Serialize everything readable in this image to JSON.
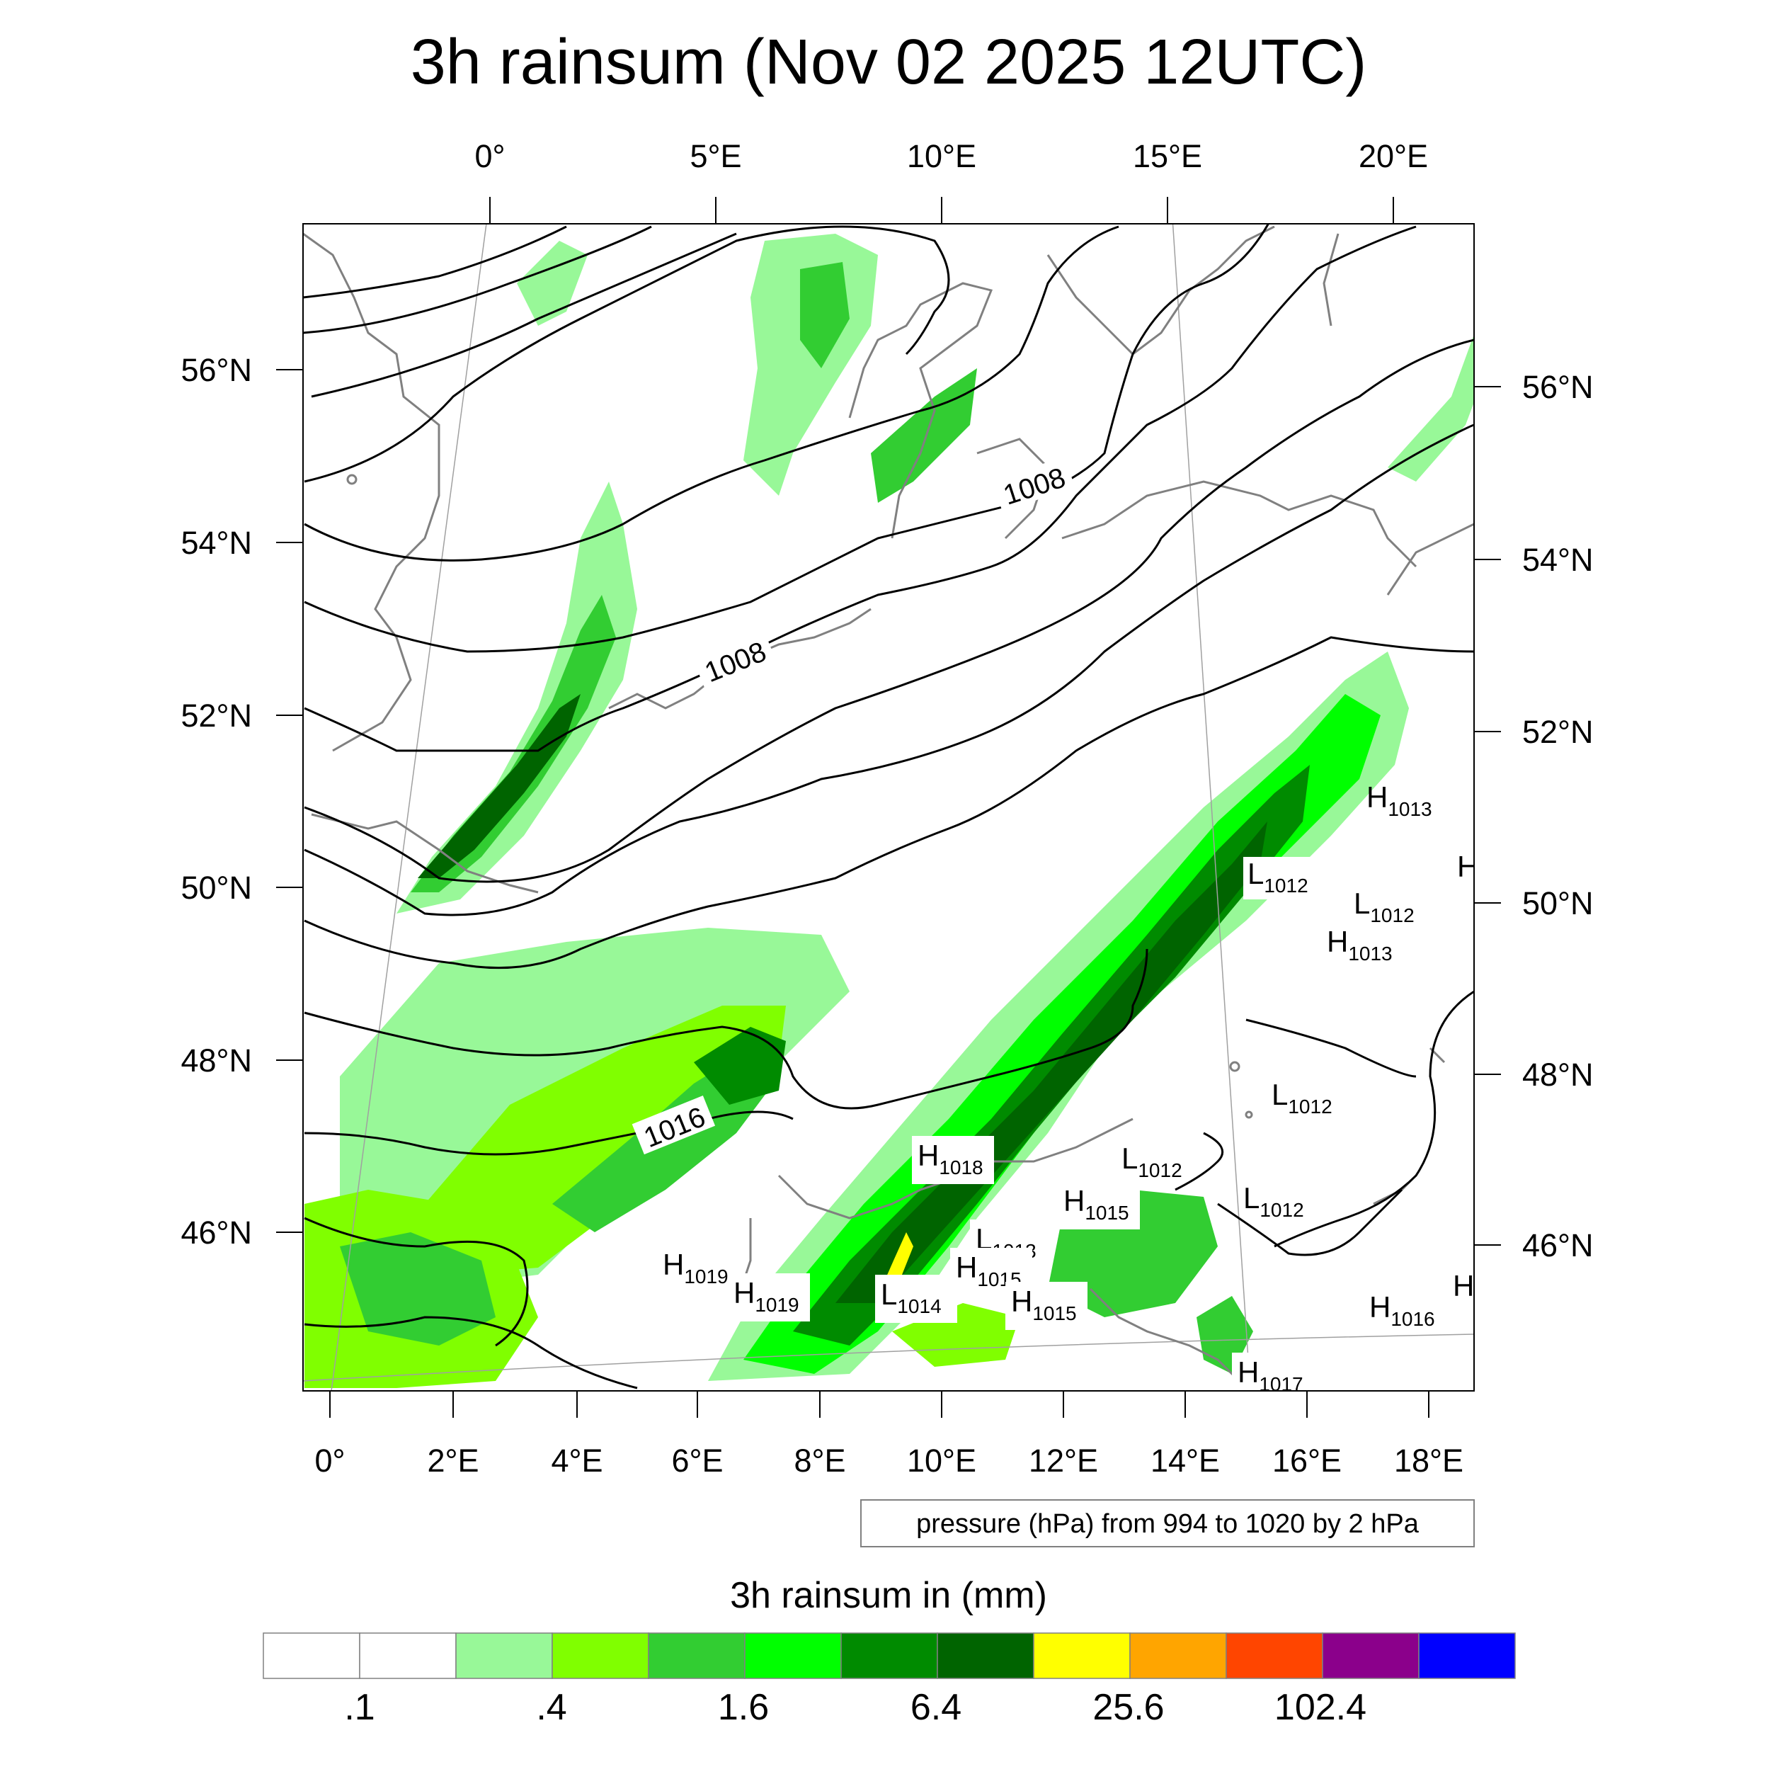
{
  "title": "3h rainsum (Nov 02 2025 12UTC)",
  "top_lon_labels": [
    "0°",
    "5°E",
    "10°E",
    "15°E",
    "20°E"
  ],
  "bottom_lon_labels": [
    "0°",
    "2°E",
    "4°E",
    "6°E",
    "8°E",
    "10°E",
    "12°E",
    "14°E",
    "16°E",
    "18°E"
  ],
  "left_lat_labels": [
    "56°N",
    "54°N",
    "52°N",
    "50°N",
    "48°N",
    "46°N"
  ],
  "right_lat_labels": [
    "56°N",
    "54°N",
    "52°N",
    "50°N",
    "48°N",
    "46°N"
  ],
  "contour_labels": [
    "1008",
    "1008",
    "1016"
  ],
  "pressure_centers": [
    {
      "kind": "H",
      "value": "1013"
    },
    {
      "kind": "L",
      "value": "1012"
    },
    {
      "kind": "H",
      "value": ""
    },
    {
      "kind": "L",
      "value": "1012"
    },
    {
      "kind": "H",
      "value": "1013"
    },
    {
      "kind": "L",
      "value": "1012"
    },
    {
      "kind": "H",
      "value": "1018"
    },
    {
      "kind": "L",
      "value": "1012"
    },
    {
      "kind": "L",
      "value": "1012"
    },
    {
      "kind": "H",
      "value": "1015"
    },
    {
      "kind": "L",
      "value": "1013"
    },
    {
      "kind": "H",
      "value": "1015"
    },
    {
      "kind": "H",
      "value": "1015"
    },
    {
      "kind": "L",
      "value": "1014"
    },
    {
      "kind": "H",
      "value": "1019"
    },
    {
      "kind": "H",
      "value": "1019"
    },
    {
      "kind": "H",
      "value": "1016"
    },
    {
      "kind": "H",
      "value": ""
    },
    {
      "kind": "H",
      "value": "1017"
    }
  ],
  "contour_info": "pressure (hPa) from 994 to 1020 by 2 hPa",
  "colorbar": {
    "title": "3h rainsum in (mm)",
    "colors": [
      "#ffffff",
      "#ffffff",
      "#98f898",
      "#80ff00",
      "#32cd32",
      "#00ff00",
      "#008b00",
      "#006400",
      "#ffff00",
      "#ffa500",
      "#ff4500",
      "#8b008b",
      "#0000ff"
    ],
    "labels": [
      ".1",
      ".4",
      "1.6",
      "6.4",
      "25.6",
      "102.4"
    ]
  },
  "legend_colors": {
    "coast": "#808080",
    "isobar": "#000000",
    "graticule": "#a0a0a0"
  }
}
